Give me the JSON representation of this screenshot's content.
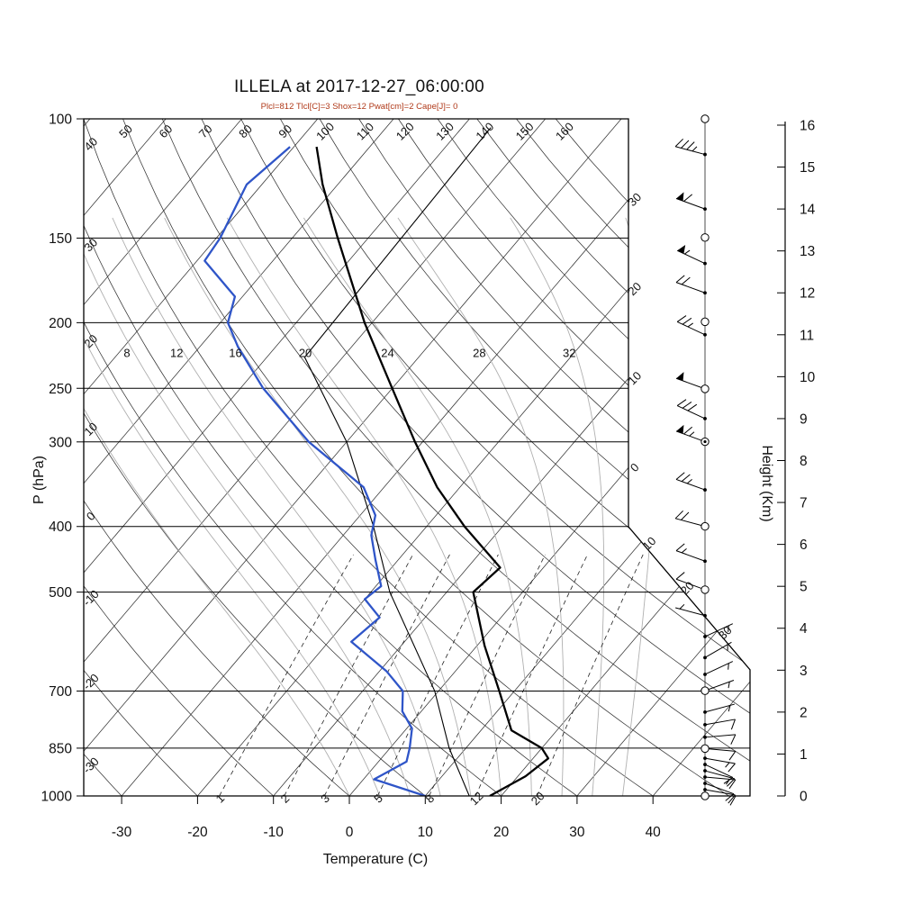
{
  "title": "ILLELA at 2017-12-27_06:00:00",
  "subtitle": "Plcl=812 Tlcl[C]=3 Shox=12 Pwat[cm]=2 Cape[J]= 0",
  "colors": {
    "temperature": "#000000",
    "dewpoint": "#2f55c8",
    "subtitle": "#b03a1a",
    "moist_adiabat": "#b0b0b0",
    "grid": "#333333"
  },
  "axes": {
    "pressure": {
      "label": "P (hPa)",
      "ticks": [
        100,
        150,
        200,
        250,
        300,
        400,
        500,
        700,
        850,
        1000
      ]
    },
    "temperature": {
      "label": "Temperature (C)",
      "ticks": [
        -30,
        -20,
        -10,
        0,
        10,
        20,
        30,
        40
      ]
    },
    "height": {
      "label": "Height (Km)",
      "ticks": [
        0,
        1,
        2,
        3,
        4,
        5,
        6,
        7,
        8,
        9,
        10,
        11,
        12,
        13,
        14,
        15,
        16
      ]
    }
  },
  "grid_labels": {
    "dry_adiabats_top": [
      "50",
      "60",
      "70",
      "80",
      "90",
      "100",
      "110",
      "120",
      "130",
      "140",
      "150",
      "160"
    ],
    "dry_adiabats_left": [
      "40",
      "30",
      "20",
      "10",
      "0",
      "-10",
      "-20",
      "-30"
    ],
    "isotherms_right": [
      {
        "t": -30,
        "label": "30"
      },
      {
        "t": -20,
        "label": "20"
      },
      {
        "t": -10,
        "label": "10"
      },
      {
        "t": 0,
        "label": "0"
      },
      {
        "t": 10,
        "label": "10"
      },
      {
        "t": 20,
        "label": "20"
      },
      {
        "t": 30,
        "label": "30"
      }
    ],
    "moist_adiabats": [
      "8",
      "12",
      "16",
      "20",
      "24",
      "28",
      "32"
    ],
    "moist_adiabat_values": [
      8,
      12,
      16,
      20,
      24,
      28,
      32
    ],
    "mixing_ratio": [
      "1",
      "2",
      "3",
      "5",
      "8",
      "12",
      "20"
    ],
    "mixing_ratio_values": [
      1,
      2,
      3,
      5,
      8,
      12,
      20
    ]
  },
  "chart_data": {
    "type": "line",
    "title": "ILLELA at 2017-12-27_06:00:00",
    "xlabel": "Temperature (C)",
    "ylabel": "P (hPa)",
    "x_range": [
      -35,
      45
    ],
    "pressure_range_hpa": [
      1050,
      100
    ],
    "height_range_km": [
      0,
      16
    ],
    "diagram": "skew-t log-p",
    "parameters": {
      "Plcl": 812,
      "Tlcl_C": 3,
      "Shox": 12,
      "Pwat_cm": 2,
      "Cape_J": 0
    },
    "series": [
      {
        "name": "temperature",
        "color": "#000000",
        "points_p_t": [
          [
            1000,
            18.5
          ],
          [
            935,
            21
          ],
          [
            880,
            22
          ],
          [
            850,
            20
          ],
          [
            800,
            14
          ],
          [
            700,
            8
          ],
          [
            600,
            1
          ],
          [
            500,
            -6.5
          ],
          [
            460,
            -5.7
          ],
          [
            400,
            -15
          ],
          [
            350,
            -23
          ],
          [
            300,
            -31
          ],
          [
            250,
            -40
          ],
          [
            200,
            -51
          ],
          [
            150,
            -64
          ],
          [
            125,
            -72
          ],
          [
            110,
            -77
          ]
        ]
      },
      {
        "name": "dewpoint",
        "color": "#2f55c8",
        "points_p_t": [
          [
            1000,
            10
          ],
          [
            945,
            1.4
          ],
          [
            890,
            3.7
          ],
          [
            850,
            2.6
          ],
          [
            795,
            0.7
          ],
          [
            750,
            -2.5
          ],
          [
            700,
            -4.7
          ],
          [
            655,
            -9
          ],
          [
            592,
            -17
          ],
          [
            545,
            -16
          ],
          [
            512,
            -20
          ],
          [
            490,
            -19.3
          ],
          [
            448,
            -23
          ],
          [
            412,
            -26.3
          ],
          [
            385,
            -28
          ],
          [
            350,
            -32.7
          ],
          [
            300,
            -45
          ],
          [
            250,
            -57
          ],
          [
            217,
            -65
          ],
          [
            200,
            -69
          ],
          [
            183,
            -71
          ],
          [
            162,
            -79
          ],
          [
            150,
            -79.5
          ],
          [
            125,
            -82
          ],
          [
            110,
            -80.5
          ]
        ]
      },
      {
        "name": "reference",
        "color": "#000000",
        "points_p_t": [
          [
            1000,
            15.8
          ],
          [
            850,
            7.8
          ],
          [
            700,
            -0.5
          ],
          [
            500,
            -17.5
          ],
          [
            400,
            -27
          ],
          [
            300,
            -40
          ],
          [
            225,
            -55
          ],
          [
            103,
            -56.2
          ]
        ]
      }
    ],
    "winds": [
      {
        "h": 0.0,
        "dir": 90,
        "spd": 8,
        "marker": "circle"
      },
      {
        "h": 0.15,
        "dir": 100,
        "spd": 10,
        "marker": "dot"
      },
      {
        "h": 0.3,
        "dir": 110,
        "spd": 12,
        "marker": "dot"
      },
      {
        "h": 0.45,
        "dir": 95,
        "spd": 15,
        "marker": "dot"
      },
      {
        "h": 0.6,
        "dir": 105,
        "spd": 12,
        "marker": "dot"
      },
      {
        "h": 0.75,
        "dir": 115,
        "spd": 10,
        "marker": "dot"
      },
      {
        "h": 0.9,
        "dir": 100,
        "spd": 15,
        "marker": "dot"
      },
      {
        "h": 1.13,
        "dir": 95,
        "spd": 10,
        "marker": "circle"
      },
      {
        "h": 1.4,
        "dir": 85,
        "spd": 8,
        "marker": "dot"
      },
      {
        "h": 1.7,
        "dir": 80,
        "spd": 8,
        "marker": "dot"
      },
      {
        "h": 2.0,
        "dir": 75,
        "spd": 5,
        "marker": "dot"
      },
      {
        "h": 2.51,
        "dir": 70,
        "spd": 5,
        "marker": "circle"
      },
      {
        "h": 2.9,
        "dir": 65,
        "spd": 5,
        "marker": "dot"
      },
      {
        "h": 3.3,
        "dir": 60,
        "spd": 5,
        "marker": "dot"
      },
      {
        "h": 3.8,
        "dir": 65,
        "spd": 3,
        "marker": "dot"
      },
      {
        "h": 4.3,
        "dir": 285,
        "spd": 5,
        "marker": "dot"
      },
      {
        "h": 4.92,
        "dir": 290,
        "spd": 10,
        "marker": "circle"
      },
      {
        "h": 5.6,
        "dir": 290,
        "spd": 15,
        "marker": "dot"
      },
      {
        "h": 6.43,
        "dir": 285,
        "spd": 20,
        "marker": "circle"
      },
      {
        "h": 7.3,
        "dir": 290,
        "spd": 25,
        "marker": "dot"
      },
      {
        "h": 8.45,
        "dir": 290,
        "spd": 65,
        "marker": "circle-dot"
      },
      {
        "h": 9.0,
        "dir": 295,
        "spd": 30,
        "marker": "dot"
      },
      {
        "h": 9.71,
        "dir": 290,
        "spd": 50,
        "marker": "circle"
      },
      {
        "h": 11.0,
        "dir": 295,
        "spd": 25,
        "marker": "dot"
      },
      {
        "h": 11.31,
        "dir": 0,
        "spd": 0,
        "marker": "circle"
      },
      {
        "h": 12.0,
        "dir": 290,
        "spd": 20,
        "marker": "dot"
      },
      {
        "h": 12.7,
        "dir": 295,
        "spd": 55,
        "marker": "dot"
      },
      {
        "h": 13.32,
        "dir": 0,
        "spd": 0,
        "marker": "circle"
      },
      {
        "h": 14.0,
        "dir": 290,
        "spd": 60,
        "marker": "dot"
      },
      {
        "h": 15.3,
        "dir": 285,
        "spd": 35,
        "marker": "dot"
      },
      {
        "h": 16.15,
        "dir": 0,
        "spd": 0,
        "marker": "circle"
      }
    ]
  }
}
